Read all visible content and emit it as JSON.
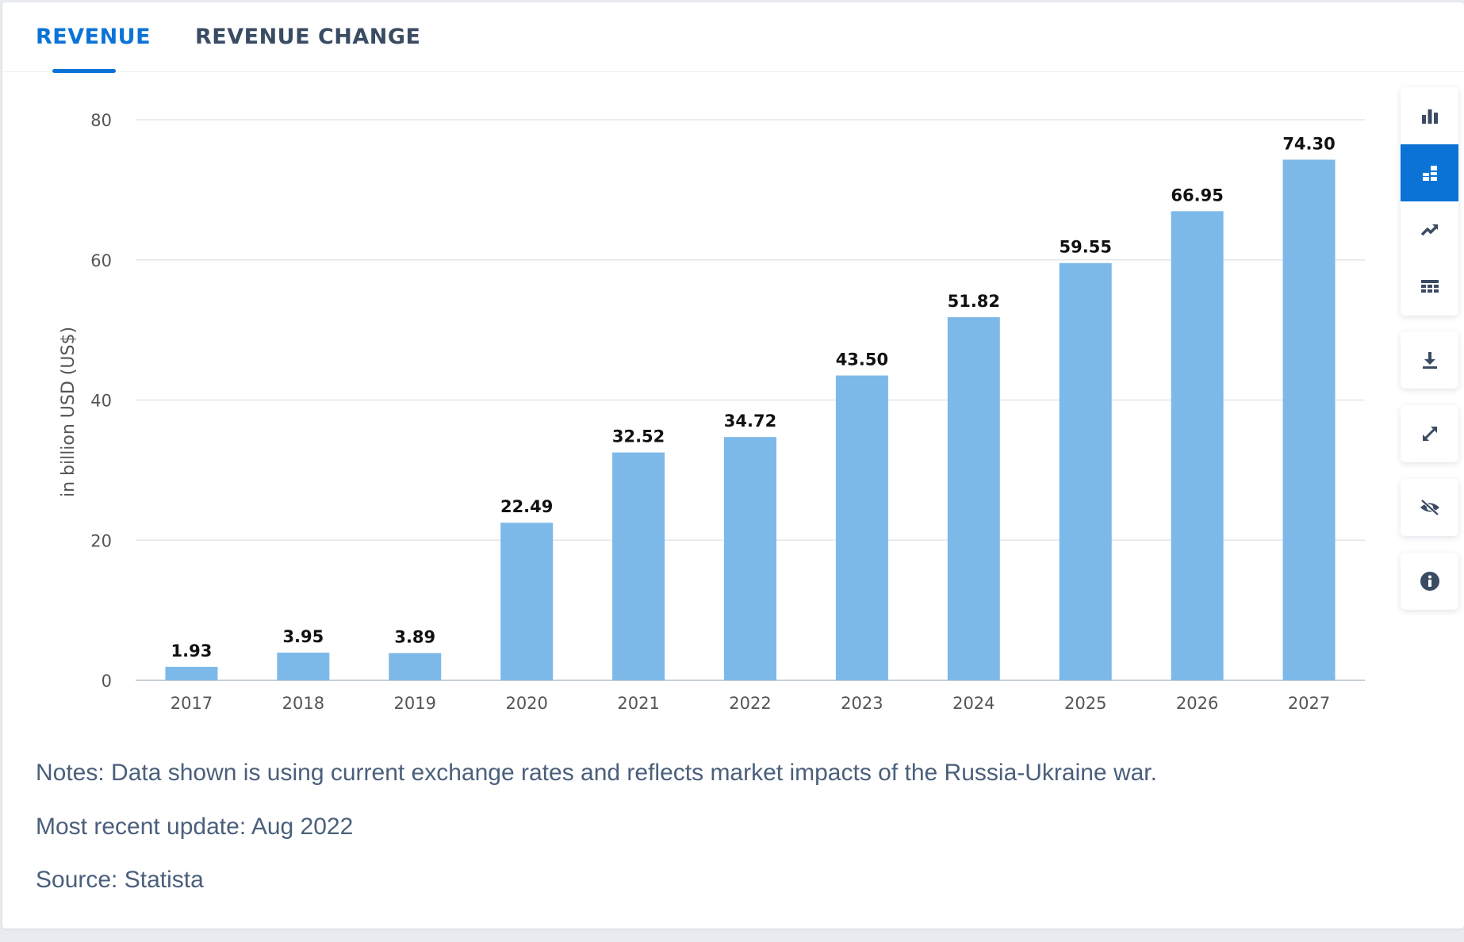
{
  "tabs": [
    {
      "label": "REVENUE",
      "active": true
    },
    {
      "label": "REVENUE CHANGE",
      "active": false
    }
  ],
  "colors": {
    "accent": "#0b73d6",
    "bar": "#7db9e8",
    "grid": "#e3e7ec",
    "axis_text": "#555555",
    "label_text": "#111111",
    "notes_text": "#4a5f7b"
  },
  "toolbar": {
    "chart_types": [
      {
        "icon": "bar-chart-icon",
        "selected": false
      },
      {
        "icon": "stacked-bar-icon",
        "selected": true
      },
      {
        "icon": "trend-line-icon",
        "selected": false
      },
      {
        "icon": "table-icon",
        "selected": false
      }
    ],
    "actions": [
      {
        "icon": "download-icon"
      },
      {
        "icon": "expand-icon"
      },
      {
        "icon": "hide-icon"
      },
      {
        "icon": "info-icon"
      }
    ]
  },
  "chart_data": {
    "type": "bar",
    "categories": [
      "2017",
      "2018",
      "2019",
      "2020",
      "2021",
      "2022",
      "2023",
      "2024",
      "2025",
      "2026",
      "2027"
    ],
    "values": [
      1.93,
      3.95,
      3.89,
      22.49,
      32.52,
      34.72,
      43.5,
      51.82,
      59.55,
      66.95,
      74.3
    ],
    "value_labels": [
      "1.93",
      "3.95",
      "3.89",
      "22.49",
      "32.52",
      "34.72",
      "43.50",
      "51.82",
      "59.55",
      "66.95",
      "74.30"
    ],
    "xlabel": "",
    "ylabel": "in billion USD (US$)",
    "ylim": [
      0,
      80
    ],
    "yticks": [
      0,
      20,
      40,
      60,
      80
    ],
    "grid": true,
    "legend": "none"
  },
  "notes": {
    "note": "Notes: Data shown is using current exchange rates and reflects market impacts of the Russia-Ukraine war.",
    "update": "Most recent update: Aug 2022",
    "source": "Source: Statista"
  }
}
